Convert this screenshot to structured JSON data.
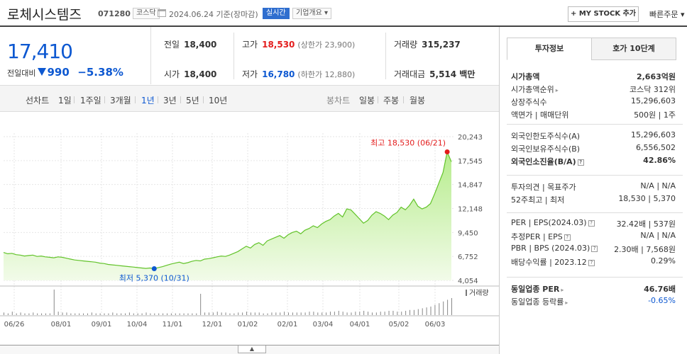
{
  "header": {
    "stock_name": "로체시스템즈",
    "code": "071280",
    "market_badge": "코스닥",
    "date_text": "2024.06.24  기준(장마감)",
    "realtime_badge": "실시간",
    "company_overview": "기업개요 ▾",
    "my_stock_button": "+ MY STOCK 추가",
    "quick_order": "빠른주문 ▾"
  },
  "price": {
    "current": "17,410",
    "change_label": "전일대비",
    "change_value": "990",
    "change_pct": "−5.38%"
  },
  "stats": {
    "prev_label": "전일",
    "prev_value": "18,400",
    "high_label": "고가",
    "high_value": "18,530",
    "upper_limit": "(상한가 23,900)",
    "volume_label": "거래량",
    "volume_value": "315,237",
    "open_label": "시가",
    "open_value": "18,400",
    "low_label": "저가",
    "low_value": "16,780",
    "lower_limit": "(하한가 12,880)",
    "amount_label": "거래대금",
    "amount_value": "5,514 백만"
  },
  "toolbar": {
    "line_chart_label": "선차트",
    "periods": [
      "1일",
      "1주일",
      "3개월",
      "1년",
      "3년",
      "5년",
      "10년"
    ],
    "active_period": "1년",
    "candle_label": "봉차트",
    "candle_periods": [
      "일봉",
      "주봉",
      "월봉"
    ]
  },
  "chart_data": {
    "type": "area",
    "y_ticks": [
      "20,243",
      "17,545",
      "14,847",
      "12,148",
      "9,450",
      "6,752",
      "4,054"
    ],
    "x_ticks": [
      "06/26",
      "08/01",
      "09/01",
      "10/04",
      "11/01",
      "12/01",
      "01/02",
      "02/01",
      "03/04",
      "04/01",
      "05/02",
      "06/03"
    ],
    "ylim": [
      4054,
      20243
    ],
    "high_annotation": "최고 18,530 (06/21)",
    "low_annotation": "최저 5,370 (10/31)",
    "volume_label": "거래량",
    "series": [
      {
        "values": [
          7200,
          7050,
          7100,
          6950,
          6900,
          6800,
          6850,
          6900,
          6750,
          6800,
          6700,
          6650,
          6600,
          6700,
          6650,
          6550,
          6450,
          6350,
          6300,
          6250,
          6200,
          6150,
          6100,
          6000,
          5950,
          5850,
          5800,
          5750,
          5700,
          5650,
          5600,
          5550,
          5500,
          5450,
          5400,
          5450,
          5370,
          5500,
          5600,
          5750,
          5900,
          6000,
          6100,
          5950,
          6050,
          6200,
          6300,
          6250,
          6450,
          6500,
          6600,
          6700,
          6800,
          6750,
          6900,
          7100,
          7300,
          7600,
          7900,
          7700,
          8100,
          8300,
          8000,
          8500,
          8700,
          8900,
          9100,
          8800,
          9200,
          9450,
          9600,
          9300,
          9700,
          9900,
          10200,
          10000,
          10400,
          10700,
          10900,
          11300,
          11600,
          11200,
          12100,
          12000,
          11500,
          11000,
          10500,
          10800,
          11400,
          11800,
          11600,
          11300,
          10900,
          11400,
          11700,
          12300,
          12000,
          12500,
          13200,
          12400,
          12100,
          12300,
          12700,
          13800,
          15000,
          16200,
          18530,
          17410
        ]
      }
    ],
    "volume": [
      3,
      2,
      4,
      2,
      3,
      2,
      2,
      3,
      2,
      2,
      2,
      2,
      30,
      4,
      3,
      3,
      2,
      2,
      2,
      2,
      2,
      3,
      2,
      2,
      2,
      2,
      3,
      2,
      2,
      2,
      3,
      2,
      2,
      2,
      3,
      2,
      2,
      2,
      2,
      2,
      2,
      2,
      2,
      2,
      2,
      2,
      2,
      25,
      3,
      3,
      3,
      4,
      3,
      3,
      2,
      2,
      3,
      3,
      4,
      3,
      3,
      3,
      2,
      2,
      3,
      3,
      3,
      4,
      3,
      3,
      3,
      3,
      3,
      4,
      4,
      3,
      3,
      3,
      4,
      4,
      5,
      4,
      3,
      3,
      4,
      4,
      5,
      4,
      3,
      3,
      4,
      4,
      5,
      5,
      4,
      4,
      5,
      6,
      6,
      7,
      8,
      9,
      10,
      12,
      14,
      16,
      18,
      20
    ]
  },
  "side": {
    "tab_invest": "투자정보",
    "tab_quote": "호가 10단계",
    "rows1": [
      {
        "k": "시가총액",
        "v": "2,663억원",
        "bold": true
      },
      {
        "k": "시가총액순위",
        "v": "코스닥 312위",
        "arrow": true
      },
      {
        "k": "상장주식수",
        "v": "15,296,603"
      },
      {
        "k": "액면가 | 매매단위",
        "v": "500원 | 1주"
      }
    ],
    "rows2": [
      {
        "k": "외국인한도주식수(A)",
        "v": "15,296,603"
      },
      {
        "k": "외국인보유주식수(B)",
        "v": "6,556,502"
      },
      {
        "k": "외국인소진율(B/A)",
        "v": "42.86%",
        "bold": true,
        "q": true
      }
    ],
    "rows3": [
      {
        "k": "투자의견 | 목표주가",
        "v": "N/A | N/A"
      },
      {
        "k": "52주최고 | 최저",
        "v": "18,530 | 5,370"
      }
    ],
    "rows4": [
      {
        "k": "PER | EPS(2024.03)",
        "v": "32.42배 | 537원",
        "q": true
      },
      {
        "k": "추정PER | EPS",
        "v": "N/A | N/A",
        "q": true
      },
      {
        "k": "PBR | BPS (2024.03)",
        "v": "2.30배 | 7,568원",
        "q": true
      },
      {
        "k": "배당수익률 | 2023.12",
        "v": "0.29%",
        "q": true
      }
    ],
    "rows5": [
      {
        "k": "동일업종 PER",
        "v": "46.76배",
        "bold": true,
        "arrow": true
      },
      {
        "k": "동일업종 등락률",
        "v": "-0.65%",
        "arrow": true,
        "blue": true
      }
    ]
  }
}
